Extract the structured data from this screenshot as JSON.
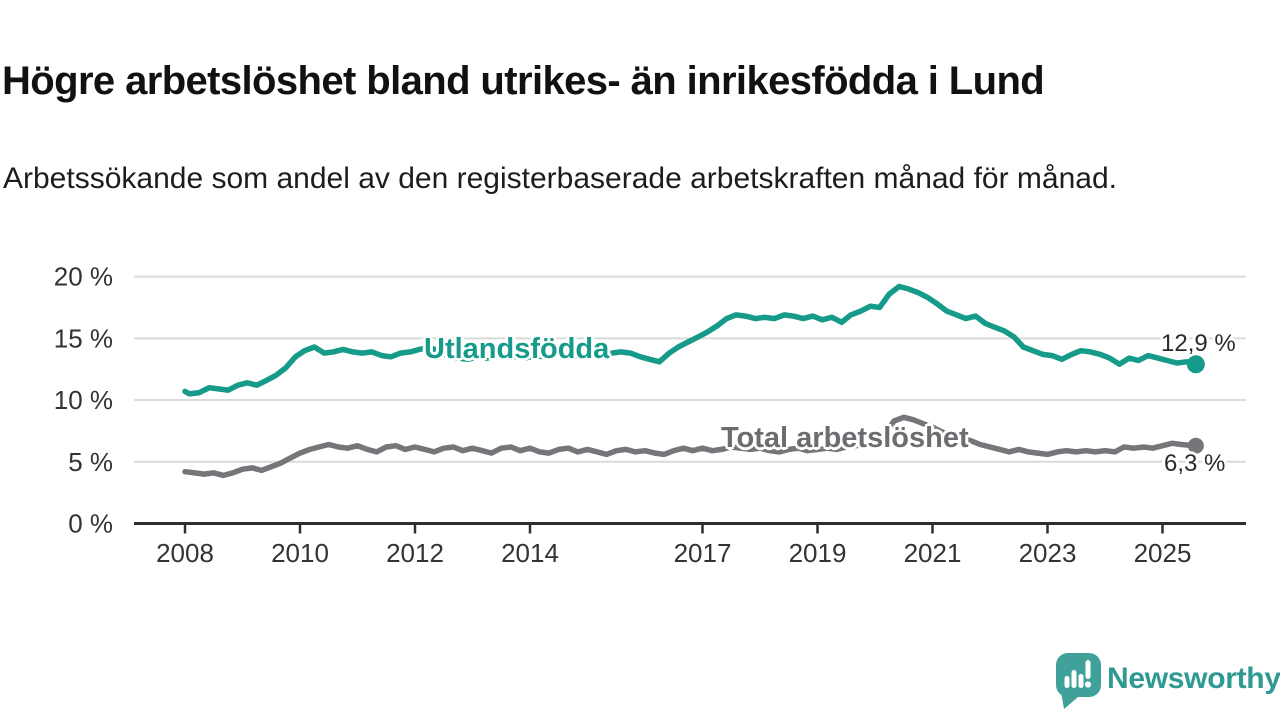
{
  "header": {
    "title": "Högre arbetslöshet bland utrikes- än inrikesfödda i Lund",
    "subtitle": "Arbetssökande som andel av den registerbaserade arbetskraften månad för månad."
  },
  "colors": {
    "utlandsfodda": "#169b8a",
    "total": "#76767a",
    "total_label": "#6d6d71",
    "grid": "#dadada",
    "axis": "#2e2e2e",
    "tick_text": "#333333",
    "value_text": "#2b2b2b",
    "logo_fill": "#40a09a",
    "logo_text": "#2f9a94"
  },
  "branding": {
    "logo_text": "Newsworthy"
  },
  "chart_data": {
    "type": "line",
    "title": "Högre arbetslöshet bland utrikes- än inrikesfödda i Lund",
    "subtitle": "Arbetssökande som andel av den registerbaserade arbetskraften månad för månad.",
    "xlabel": "",
    "ylabel": "",
    "ylim": [
      0,
      20
    ],
    "xlim": [
      2007.1,
      2026.4
    ],
    "grid": "horizontal",
    "legend_position": "inline-labels",
    "yticks": {
      "values": [
        0,
        5,
        10,
        15,
        20
      ],
      "labels": [
        "0 %",
        "5 %",
        "10 %",
        "15 %",
        "20 %"
      ]
    },
    "xticks": {
      "values": [
        2008,
        2010,
        2012,
        2014,
        2017,
        2019,
        2021,
        2023,
        2025
      ],
      "labels": [
        "2008",
        "2010",
        "2012",
        "2014",
        "2017",
        "2019",
        "2021",
        "2023",
        "2025"
      ]
    },
    "series": [
      {
        "name": "Utlandsfödda",
        "end_label": "12,9 %",
        "last_value": 12.9,
        "color": "#169b8a",
        "points": [
          [
            2008.0,
            10.7
          ],
          [
            2008.08,
            10.5
          ],
          [
            2008.25,
            10.6
          ],
          [
            2008.42,
            11.0
          ],
          [
            2008.58,
            10.9
          ],
          [
            2008.75,
            10.8
          ],
          [
            2008.92,
            11.2
          ],
          [
            2009.08,
            11.4
          ],
          [
            2009.25,
            11.2
          ],
          [
            2009.42,
            11.6
          ],
          [
            2009.58,
            12.0
          ],
          [
            2009.75,
            12.6
          ],
          [
            2009.92,
            13.5
          ],
          [
            2010.08,
            14.0
          ],
          [
            2010.25,
            14.3
          ],
          [
            2010.42,
            13.8
          ],
          [
            2010.58,
            13.9
          ],
          [
            2010.75,
            14.1
          ],
          [
            2010.92,
            13.9
          ],
          [
            2011.08,
            13.8
          ],
          [
            2011.25,
            13.9
          ],
          [
            2011.42,
            13.6
          ],
          [
            2011.58,
            13.5
          ],
          [
            2011.75,
            13.8
          ],
          [
            2011.92,
            13.9
          ],
          [
            2012.08,
            14.1
          ],
          [
            2012.25,
            14.3
          ],
          [
            2012.42,
            13.9
          ],
          [
            2012.58,
            13.6
          ],
          [
            2012.75,
            13.4
          ],
          [
            2012.92,
            13.3
          ],
          [
            2013.08,
            13.5
          ],
          [
            2013.25,
            13.4
          ],
          [
            2013.42,
            13.6
          ],
          [
            2013.58,
            13.7
          ],
          [
            2013.75,
            13.5
          ],
          [
            2013.92,
            13.4
          ],
          [
            2014.08,
            13.6
          ],
          [
            2014.25,
            13.5
          ],
          [
            2014.42,
            13.7
          ],
          [
            2014.58,
            13.8
          ],
          [
            2014.75,
            13.6
          ],
          [
            2014.92,
            13.5
          ],
          [
            2015.08,
            13.7
          ],
          [
            2015.25,
            13.6
          ],
          [
            2015.42,
            13.8
          ],
          [
            2015.58,
            13.9
          ],
          [
            2015.75,
            13.8
          ],
          [
            2015.92,
            13.5
          ],
          [
            2016.08,
            13.3
          ],
          [
            2016.25,
            13.1
          ],
          [
            2016.42,
            13.8
          ],
          [
            2016.58,
            14.3
          ],
          [
            2016.75,
            14.7
          ],
          [
            2016.92,
            15.1
          ],
          [
            2017.08,
            15.5
          ],
          [
            2017.25,
            16.0
          ],
          [
            2017.42,
            16.6
          ],
          [
            2017.58,
            16.9
          ],
          [
            2017.75,
            16.8
          ],
          [
            2017.92,
            16.6
          ],
          [
            2018.08,
            16.7
          ],
          [
            2018.25,
            16.6
          ],
          [
            2018.42,
            16.9
          ],
          [
            2018.58,
            16.8
          ],
          [
            2018.75,
            16.6
          ],
          [
            2018.92,
            16.8
          ],
          [
            2019.08,
            16.5
          ],
          [
            2019.25,
            16.7
          ],
          [
            2019.42,
            16.3
          ],
          [
            2019.58,
            16.9
          ],
          [
            2019.75,
            17.2
          ],
          [
            2019.92,
            17.6
          ],
          [
            2020.08,
            17.5
          ],
          [
            2020.25,
            18.6
          ],
          [
            2020.42,
            19.2
          ],
          [
            2020.58,
            19.0
          ],
          [
            2020.75,
            18.7
          ],
          [
            2020.92,
            18.3
          ],
          [
            2021.08,
            17.8
          ],
          [
            2021.25,
            17.2
          ],
          [
            2021.42,
            16.9
          ],
          [
            2021.58,
            16.6
          ],
          [
            2021.75,
            16.8
          ],
          [
            2021.92,
            16.2
          ],
          [
            2022.08,
            15.9
          ],
          [
            2022.25,
            15.6
          ],
          [
            2022.42,
            15.1
          ],
          [
            2022.58,
            14.3
          ],
          [
            2022.75,
            14.0
          ],
          [
            2022.92,
            13.7
          ],
          [
            2023.08,
            13.6
          ],
          [
            2023.25,
            13.3
          ],
          [
            2023.42,
            13.7
          ],
          [
            2023.58,
            14.0
          ],
          [
            2023.75,
            13.9
          ],
          [
            2023.92,
            13.7
          ],
          [
            2024.08,
            13.4
          ],
          [
            2024.25,
            12.9
          ],
          [
            2024.42,
            13.4
          ],
          [
            2024.58,
            13.2
          ],
          [
            2024.75,
            13.6
          ],
          [
            2024.92,
            13.4
          ],
          [
            2025.08,
            13.2
          ],
          [
            2025.25,
            13.0
          ],
          [
            2025.42,
            13.1
          ],
          [
            2025.58,
            12.9
          ]
        ]
      },
      {
        "name": "Total arbetslöshet",
        "end_label": "6,3 %",
        "last_value": 6.3,
        "color": "#76767a",
        "points": [
          [
            2008.0,
            4.2
          ],
          [
            2008.17,
            4.1
          ],
          [
            2008.33,
            4.0
          ],
          [
            2008.5,
            4.1
          ],
          [
            2008.67,
            3.9
          ],
          [
            2008.83,
            4.1
          ],
          [
            2009.0,
            4.4
          ],
          [
            2009.17,
            4.5
          ],
          [
            2009.33,
            4.3
          ],
          [
            2009.5,
            4.6
          ],
          [
            2009.67,
            4.9
          ],
          [
            2009.83,
            5.3
          ],
          [
            2010.0,
            5.7
          ],
          [
            2010.17,
            6.0
          ],
          [
            2010.33,
            6.2
          ],
          [
            2010.5,
            6.4
          ],
          [
            2010.67,
            6.2
          ],
          [
            2010.83,
            6.1
          ],
          [
            2011.0,
            6.3
          ],
          [
            2011.17,
            6.0
          ],
          [
            2011.33,
            5.8
          ],
          [
            2011.5,
            6.2
          ],
          [
            2011.67,
            6.3
          ],
          [
            2011.83,
            6.0
          ],
          [
            2012.0,
            6.2
          ],
          [
            2012.17,
            6.0
          ],
          [
            2012.33,
            5.8
          ],
          [
            2012.5,
            6.1
          ],
          [
            2012.67,
            6.2
          ],
          [
            2012.83,
            5.9
          ],
          [
            2013.0,
            6.1
          ],
          [
            2013.17,
            5.9
          ],
          [
            2013.33,
            5.7
          ],
          [
            2013.5,
            6.1
          ],
          [
            2013.67,
            6.2
          ],
          [
            2013.83,
            5.9
          ],
          [
            2014.0,
            6.1
          ],
          [
            2014.17,
            5.8
          ],
          [
            2014.33,
            5.7
          ],
          [
            2014.5,
            6.0
          ],
          [
            2014.67,
            6.1
          ],
          [
            2014.83,
            5.8
          ],
          [
            2015.0,
            6.0
          ],
          [
            2015.17,
            5.8
          ],
          [
            2015.33,
            5.6
          ],
          [
            2015.5,
            5.9
          ],
          [
            2015.67,
            6.0
          ],
          [
            2015.83,
            5.8
          ],
          [
            2016.0,
            5.9
          ],
          [
            2016.17,
            5.7
          ],
          [
            2016.33,
            5.6
          ],
          [
            2016.5,
            5.9
          ],
          [
            2016.67,
            6.1
          ],
          [
            2016.83,
            5.9
          ],
          [
            2017.0,
            6.1
          ],
          [
            2017.17,
            5.9
          ],
          [
            2017.33,
            6.0
          ],
          [
            2017.5,
            6.2
          ],
          [
            2017.67,
            6.1
          ],
          [
            2017.83,
            6.0
          ],
          [
            2018.0,
            6.1
          ],
          [
            2018.17,
            5.9
          ],
          [
            2018.33,
            5.8
          ],
          [
            2018.5,
            6.0
          ],
          [
            2018.67,
            6.1
          ],
          [
            2018.83,
            5.9
          ],
          [
            2019.0,
            6.0
          ],
          [
            2019.17,
            6.1
          ],
          [
            2019.33,
            6.0
          ],
          [
            2019.5,
            6.2
          ],
          [
            2019.67,
            6.3
          ],
          [
            2019.83,
            6.4
          ],
          [
            2020.0,
            6.5
          ],
          [
            2020.17,
            7.2
          ],
          [
            2020.33,
            8.3
          ],
          [
            2020.5,
            8.6
          ],
          [
            2020.67,
            8.4
          ],
          [
            2020.83,
            8.1
          ],
          [
            2021.0,
            7.8
          ],
          [
            2021.17,
            7.4
          ],
          [
            2021.33,
            7.1
          ],
          [
            2021.5,
            6.9
          ],
          [
            2021.67,
            6.7
          ],
          [
            2021.83,
            6.4
          ],
          [
            2022.0,
            6.2
          ],
          [
            2022.17,
            6.0
          ],
          [
            2022.33,
            5.8
          ],
          [
            2022.5,
            6.0
          ],
          [
            2022.67,
            5.8
          ],
          [
            2022.83,
            5.7
          ],
          [
            2023.0,
            5.6
          ],
          [
            2023.17,
            5.8
          ],
          [
            2023.33,
            5.9
          ],
          [
            2023.5,
            5.8
          ],
          [
            2023.67,
            5.9
          ],
          [
            2023.83,
            5.8
          ],
          [
            2024.0,
            5.9
          ],
          [
            2024.17,
            5.8
          ],
          [
            2024.33,
            6.2
          ],
          [
            2024.5,
            6.1
          ],
          [
            2024.67,
            6.2
          ],
          [
            2024.83,
            6.1
          ],
          [
            2025.0,
            6.3
          ],
          [
            2025.17,
            6.5
          ],
          [
            2025.33,
            6.4
          ],
          [
            2025.58,
            6.3
          ]
        ]
      }
    ]
  }
}
